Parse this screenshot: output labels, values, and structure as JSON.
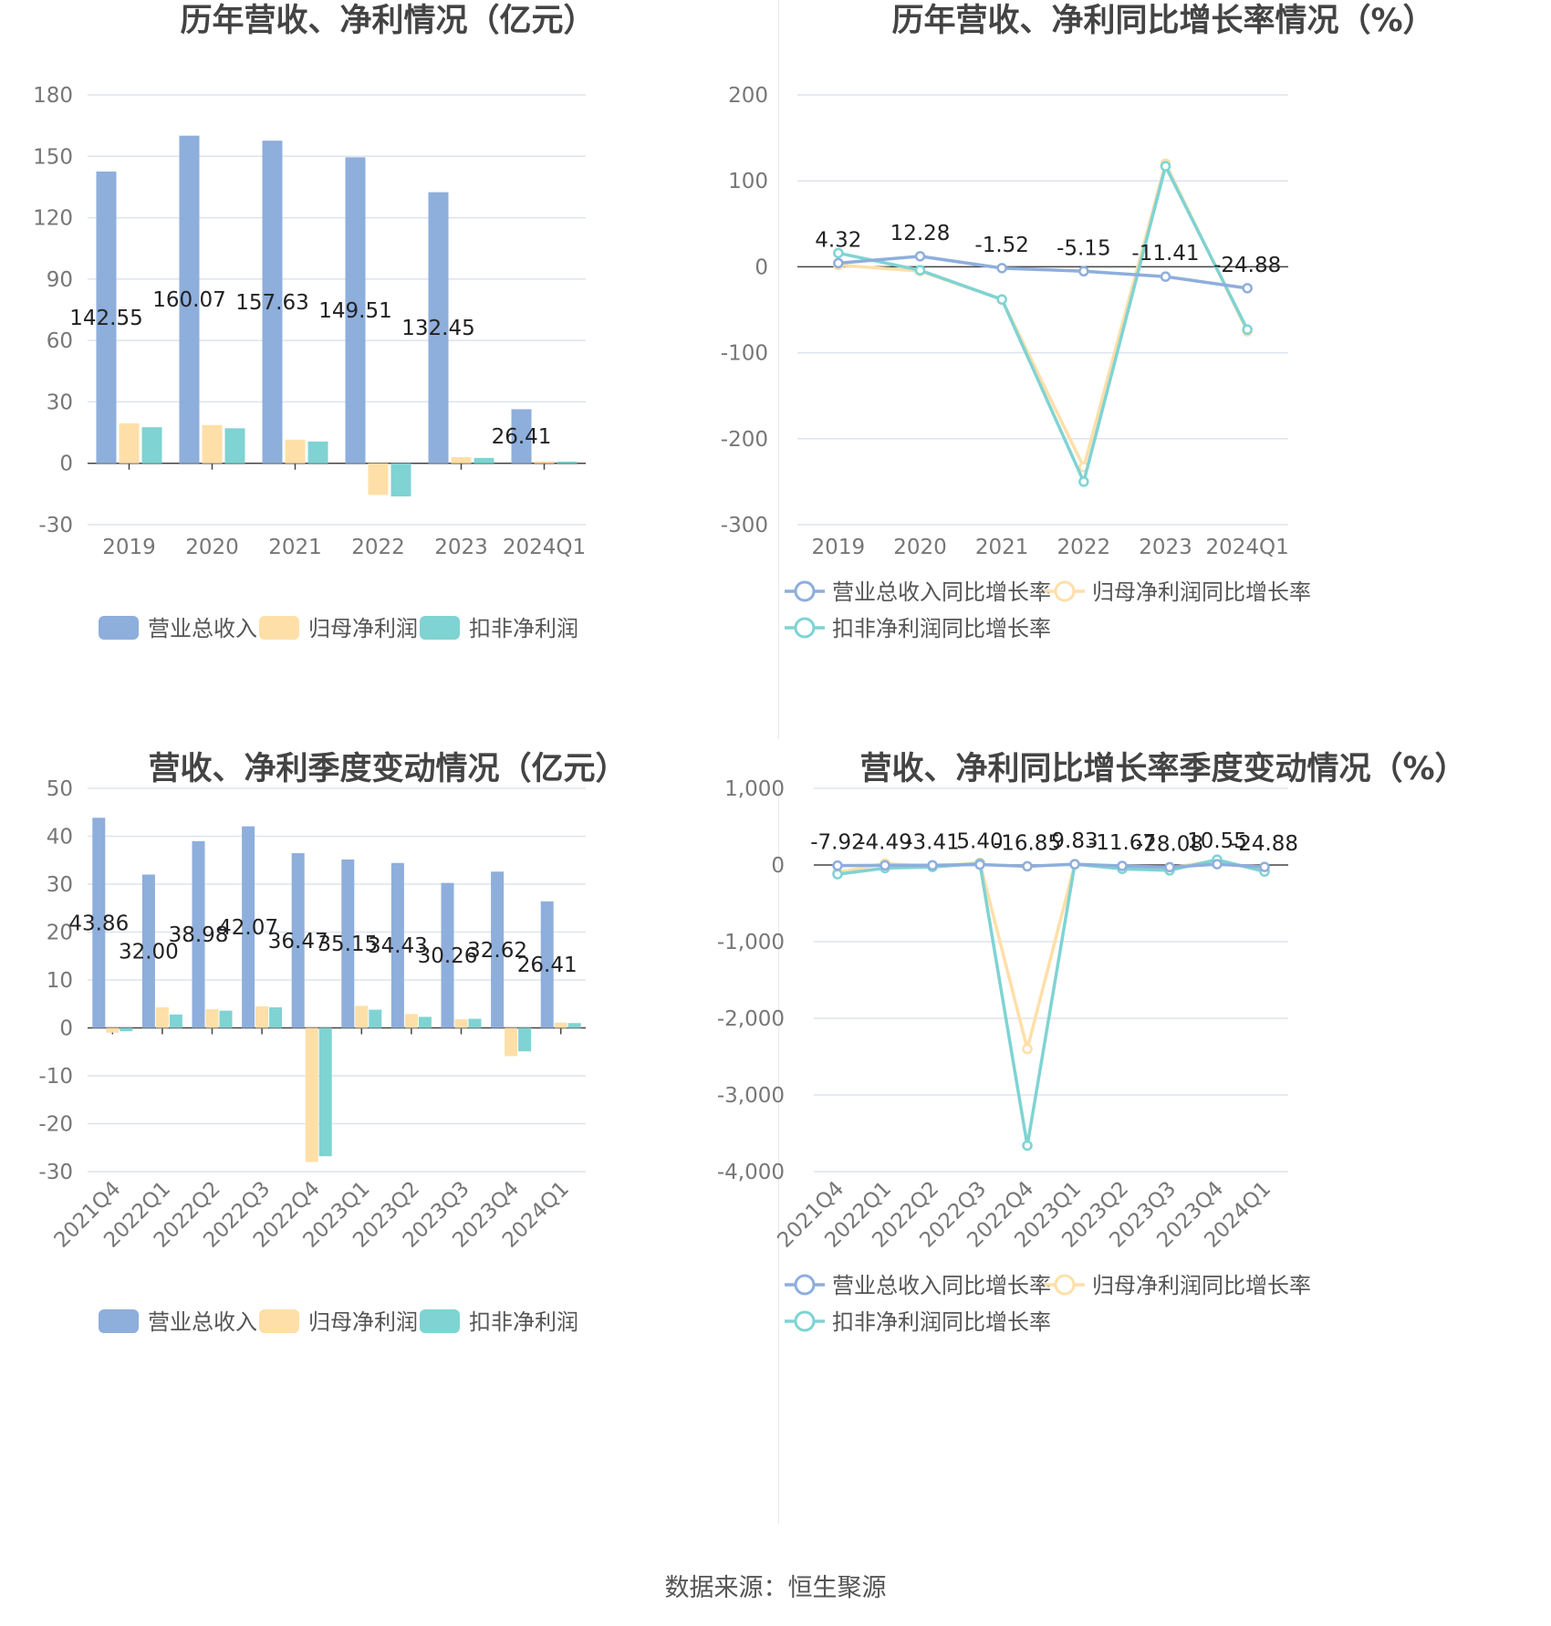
{
  "colors": {
    "revenue": "#8eaedc",
    "net_profit": "#ffdfa8",
    "deducted_profit": "#7fd3d3"
  },
  "legend_bar": [
    "营业总收入",
    "归母净利润",
    "扣非净利润"
  ],
  "legend_line": [
    "营业总收入同比增长率",
    "归母净利润同比增长率",
    "扣非净利润同比增长率"
  ],
  "source": "数据来源：恒生聚源",
  "chart_data": [
    {
      "type": "bar",
      "title": "历年营收、净利情况（亿元）",
      "categories": [
        "2019",
        "2020",
        "2021",
        "2022",
        "2023",
        "2024Q1"
      ],
      "ylim": [
        -30,
        180
      ],
      "yticks": [
        180,
        150,
        120,
        90,
        60,
        30,
        0,
        -30
      ],
      "series": [
        {
          "name": "营业总收入",
          "values": [
            142.55,
            160.07,
            157.63,
            149.51,
            132.45,
            26.41
          ]
        },
        {
          "name": "归母净利润",
          "values": [
            19.5,
            18.7,
            11.5,
            -15.5,
            3.0,
            0.9
          ]
        },
        {
          "name": "扣非净利润",
          "values": [
            17.6,
            17.1,
            10.6,
            -16.2,
            2.6,
            0.8
          ]
        }
      ],
      "labels": [
        "142.55",
        "160.07",
        "157.63",
        "149.51",
        "132.45",
        "26.41"
      ]
    },
    {
      "type": "line",
      "title": "历年营收、净利同比增长率情况（%）",
      "categories": [
        "2019",
        "2020",
        "2021",
        "2022",
        "2023",
        "2024Q1"
      ],
      "ylim": [
        -300,
        200
      ],
      "yticks": [
        200,
        100,
        0,
        -100,
        -200,
        -300
      ],
      "series": [
        {
          "name": "营业总收入同比增长率",
          "values": [
            4.32,
            12.28,
            -1.52,
            -5.15,
            -11.41,
            -24.88
          ]
        },
        {
          "name": "归母净利润同比增长率",
          "values": [
            2,
            -5,
            -38,
            -233,
            120,
            -75
          ]
        },
        {
          "name": "扣非净利润同比增长率",
          "values": [
            16,
            -4,
            -38,
            -250,
            117,
            -73
          ]
        }
      ],
      "labels": [
        "4.32",
        "12.28",
        "-1.52",
        "-5.15",
        "-11.41",
        "-24.88"
      ]
    },
    {
      "type": "bar",
      "title": "营收、净利季度变动情况（亿元）",
      "categories": [
        "2021Q4",
        "2022Q1",
        "2022Q2",
        "2022Q3",
        "2022Q4",
        "2023Q1",
        "2023Q2",
        "2023Q3",
        "2023Q4",
        "2024Q1"
      ],
      "ylim": [
        -30,
        50
      ],
      "yticks": [
        50,
        40,
        30,
        20,
        10,
        0,
        -10,
        -20,
        -30
      ],
      "series": [
        {
          "name": "营业总收入",
          "values": [
            43.86,
            32.0,
            38.98,
            42.07,
            36.47,
            35.15,
            34.43,
            30.26,
            32.62,
            26.41
          ]
        },
        {
          "name": "归母净利润",
          "values": [
            -1.0,
            4.3,
            3.9,
            4.5,
            -28.0,
            4.6,
            2.9,
            1.8,
            -5.9,
            1.1
          ]
        },
        {
          "name": "扣非净利润",
          "values": [
            -0.7,
            2.8,
            3.6,
            4.3,
            -26.8,
            3.8,
            2.3,
            1.9,
            -4.9,
            1.0
          ]
        }
      ],
      "labels": [
        "43.86",
        "32.00",
        "38.98",
        "42.07",
        "36.47",
        "35.15",
        "34.43",
        "30.26",
        "32.62",
        "26.41"
      ]
    },
    {
      "type": "line",
      "title": "营收、净利同比增长率季度变动情况（%）",
      "categories": [
        "2021Q4",
        "2022Q1",
        "2022Q2",
        "2022Q3",
        "2022Q4",
        "2023Q1",
        "2023Q2",
        "2023Q3",
        "2023Q4",
        "2024Q1"
      ],
      "ylim": [
        -4000,
        1000
      ],
      "yticks": [
        1000,
        0,
        -1000,
        -2000,
        -3000,
        -4000
      ],
      "ytick_labels": [
        "1,000",
        "0",
        "-1,000",
        "-2,000",
        "-3,000",
        "-4,000"
      ],
      "series": [
        {
          "name": "营业总收入同比增长率",
          "values": [
            -7.92,
            -4.49,
            -3.41,
            5.4,
            -16.85,
            9.83,
            -11.67,
            -28.08,
            10.55,
            -24.88
          ]
        },
        {
          "name": "归母净利润同比增长率",
          "values": [
            -100,
            20,
            -20,
            30,
            -2400,
            10,
            -20,
            -40,
            60,
            -80
          ]
        },
        {
          "name": "扣非净利润同比增长率",
          "values": [
            -120,
            -40,
            -25,
            20,
            -3660,
            10,
            -50,
            -70,
            70,
            -85
          ]
        }
      ],
      "labels": [
        "-7.92",
        "-4.49",
        "-3.41",
        "5.40",
        "-16.85",
        "9.83",
        "-11.67",
        "-28.08",
        "10.55",
        "-24.88"
      ]
    }
  ]
}
